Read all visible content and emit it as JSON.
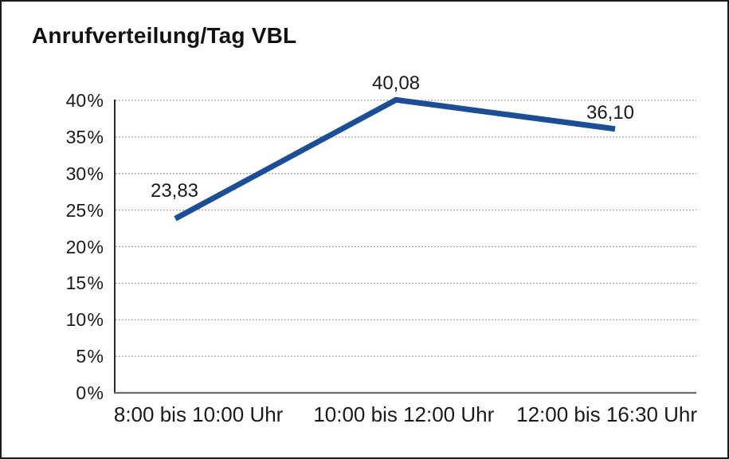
{
  "chart_data": {
    "type": "line",
    "title": "Anrufverteilung/Tag VBL",
    "categories": [
      "8:00 bis 10:00 Uhr",
      "10:00 bis 12:00 Uhr",
      "12:00 bis 16:30 Uhr"
    ],
    "values": [
      23.83,
      40.08,
      36.1
    ],
    "value_labels": [
      "23,83",
      "40,08",
      "36,10"
    ],
    "y_ticks": [
      {
        "value": 0,
        "label": "0 %"
      },
      {
        "value": 5,
        "label": "5 %"
      },
      {
        "value": 10,
        "label": "10 %"
      },
      {
        "value": 15,
        "label": "15 %"
      },
      {
        "value": 20,
        "label": "20 %"
      },
      {
        "value": 25,
        "label": "25 %"
      },
      {
        "value": 30,
        "label": "30 %"
      },
      {
        "value": 35,
        "label": "35 %"
      },
      {
        "value": 40,
        "label": "40 %"
      }
    ],
    "ylim": [
      0,
      40
    ],
    "xlabel": "",
    "ylabel": "",
    "grid": "horizontal-dotted",
    "legend": "none",
    "colors": {
      "series_line": "#1b4e94",
      "grid_line": "#8f8f8f",
      "y_axis_line": "#2b2b2b",
      "x_axis_line": "#6b6b6b",
      "text": "#1a1a1a",
      "frame_border": "#1a1a1a",
      "background": "#ffffff"
    }
  }
}
